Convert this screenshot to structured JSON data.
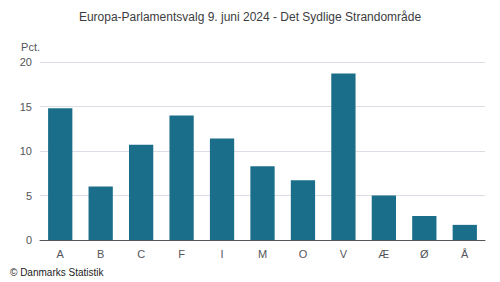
{
  "chart_data": {
    "type": "bar",
    "title": "Europa-Parlamentsvalg 9. juni 2024 - Det Sydlige Strandområde",
    "categories": [
      "A",
      "B",
      "C",
      "F",
      "I",
      "M",
      "O",
      "V",
      "Æ",
      "Ø",
      "Å"
    ],
    "values": [
      14.8,
      6.0,
      10.7,
      14.0,
      11.4,
      8.3,
      6.7,
      18.7,
      5.0,
      2.7,
      1.7
    ],
    "color": "#1a6e8a",
    "ylabel": "Pct.",
    "ylim": [
      0,
      20
    ],
    "yticks": [
      0,
      5,
      10,
      15,
      20
    ],
    "grid": true,
    "footer": "© Danmarks Statistik"
  }
}
